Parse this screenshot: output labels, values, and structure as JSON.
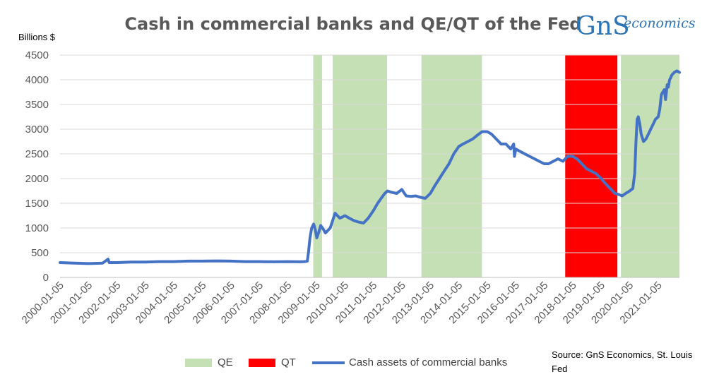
{
  "title": "Cash in commercial banks and QE/QT of the Fed",
  "logo": {
    "main": "GnS",
    "sub": "economics"
  },
  "source": "Source: GnS Economics, St. Louis Fed",
  "colors": {
    "qe": "#c5e0b4",
    "qt": "#ff0000",
    "line": "#4472c4",
    "grid": "#d9d9d9",
    "axis_text": "#595959",
    "logo": "#2e75b6"
  },
  "chart_data": {
    "type": "line",
    "title": "Cash in commercial banks and QE/QT of the Fed",
    "ylabel": "Billions $",
    "xlabel": "",
    "ylim": [
      0,
      4500
    ],
    "yticks": [
      0,
      500,
      1000,
      1500,
      2000,
      2500,
      3000,
      3500,
      4000,
      4500
    ],
    "xlim": [
      "2000-01-05",
      "2021-10-05"
    ],
    "xticks": [
      "2000-01-05",
      "2001-01-05",
      "2002-01-05",
      "2003-01-05",
      "2004-01-05",
      "2005-01-05",
      "2006-01-05",
      "2007-01-05",
      "2008-01-05",
      "2009-01-05",
      "2010-01-05",
      "2011-01-05",
      "2012-01-05",
      "2013-01-05",
      "2014-01-05",
      "2015-01-05",
      "2016-01-05",
      "2017-01-05",
      "2018-01-05",
      "2019-01-05",
      "2020-01-05",
      "2021-01-05"
    ],
    "grid": true,
    "legend_position": "bottom",
    "bands": [
      {
        "label": "QE",
        "start": "2008-11-25",
        "end": "2009-03-18",
        "color": "#c5e0b4"
      },
      {
        "label": "QE",
        "start": "2009-08-01",
        "end": "2011-06-30",
        "color": "#c5e0b4"
      },
      {
        "label": "QE",
        "start": "2012-09-13",
        "end": "2014-10-29",
        "color": "#c5e0b4"
      },
      {
        "label": "QT",
        "start": "2017-10-01",
        "end": "2019-08-01",
        "color": "#ff0000"
      },
      {
        "label": "QE",
        "start": "2019-09-15",
        "end": "2021-10-05",
        "color": "#c5e0b4"
      }
    ],
    "legend": [
      {
        "label": "QE",
        "kind": "band",
        "color": "#c5e0b4"
      },
      {
        "label": "QT",
        "kind": "band",
        "color": "#ff0000"
      },
      {
        "label": "Cash assets of commercial banks",
        "kind": "line",
        "color": "#4472c4"
      }
    ],
    "series": [
      {
        "name": "Cash assets of commercial banks",
        "color": "#4472c4",
        "x": [
          "2000-01-05",
          "2000-07-05",
          "2001-01-05",
          "2001-07-05",
          "2001-09-12",
          "2001-09-26",
          "2002-01-05",
          "2002-07-05",
          "2003-01-05",
          "2003-07-05",
          "2004-01-05",
          "2004-07-05",
          "2005-01-05",
          "2005-07-05",
          "2006-01-05",
          "2006-07-05",
          "2007-01-05",
          "2007-07-05",
          "2008-01-05",
          "2008-06-05",
          "2008-08-05",
          "2008-09-10",
          "2008-09-25",
          "2008-10-15",
          "2008-11-05",
          "2008-12-01",
          "2008-12-20",
          "2009-01-10",
          "2009-02-01",
          "2009-03-01",
          "2009-04-01",
          "2009-05-01",
          "2009-06-01",
          "2009-07-01",
          "2009-08-01",
          "2009-09-01",
          "2009-10-01",
          "2009-11-01",
          "2009-12-01",
          "2010-01-05",
          "2010-03-01",
          "2010-05-01",
          "2010-07-01",
          "2010-09-01",
          "2010-11-01",
          "2011-01-05",
          "2011-03-01",
          "2011-04-15",
          "2011-06-01",
          "2011-07-05",
          "2011-09-01",
          "2011-11-01",
          "2012-01-05",
          "2012-03-01",
          "2012-05-01",
          "2012-07-01",
          "2012-09-01",
          "2012-11-01",
          "2013-01-05",
          "2013-03-01",
          "2013-05-01",
          "2013-07-01",
          "2013-09-01",
          "2013-11-01",
          "2014-01-05",
          "2014-03-01",
          "2014-05-01",
          "2014-07-01",
          "2014-09-01",
          "2014-11-01",
          "2015-01-05",
          "2015-03-01",
          "2015-05-01",
          "2015-07-01",
          "2015-09-01",
          "2015-11-01",
          "2015-12-10",
          "2015-12-20",
          "2016-01-05",
          "2016-03-01",
          "2016-05-01",
          "2016-07-01",
          "2016-09-01",
          "2016-11-01",
          "2017-01-05",
          "2017-03-01",
          "2017-05-01",
          "2017-07-01",
          "2017-09-01",
          "2017-11-01",
          "2018-01-05",
          "2018-03-01",
          "2018-05-01",
          "2018-07-01",
          "2018-09-01",
          "2018-11-01",
          "2019-01-05",
          "2019-03-01",
          "2019-05-01",
          "2019-07-01",
          "2019-08-15",
          "2019-10-01",
          "2019-11-15",
          "2020-01-05",
          "2020-02-15",
          "2020-03-10",
          "2020-03-25",
          "2020-04-10",
          "2020-04-25",
          "2020-05-15",
          "2020-06-01",
          "2020-07-01",
          "2020-08-01",
          "2020-09-01",
          "2020-10-01",
          "2020-11-01",
          "2020-12-01",
          "2021-01-05",
          "2021-01-25",
          "2021-02-15",
          "2021-03-05",
          "2021-03-25",
          "2021-04-10",
          "2021-05-01",
          "2021-05-15",
          "2021-06-01",
          "2021-07-01",
          "2021-08-01",
          "2021-09-01",
          "2021-10-05"
        ],
        "values": [
          300,
          290,
          280,
          290,
          370,
          300,
          300,
          310,
          310,
          320,
          320,
          330,
          330,
          335,
          330,
          320,
          320,
          315,
          320,
          315,
          320,
          330,
          500,
          800,
          1000,
          1080,
          980,
          800,
          900,
          1050,
          980,
          900,
          950,
          1000,
          1150,
          1300,
          1250,
          1200,
          1220,
          1250,
          1200,
          1150,
          1120,
          1100,
          1200,
          1350,
          1500,
          1600,
          1700,
          1750,
          1720,
          1700,
          1780,
          1650,
          1640,
          1650,
          1620,
          1600,
          1700,
          1850,
          2000,
          2150,
          2300,
          2500,
          2650,
          2700,
          2750,
          2800,
          2880,
          2950,
          2950,
          2900,
          2800,
          2700,
          2700,
          2600,
          2700,
          2450,
          2600,
          2550,
          2500,
          2450,
          2400,
          2350,
          2300,
          2300,
          2350,
          2400,
          2350,
          2450,
          2450,
          2400,
          2300,
          2200,
          2150,
          2100,
          2000,
          1900,
          1800,
          1700,
          1680,
          1650,
          1700,
          1750,
          1800,
          2100,
          2700,
          3200,
          3250,
          3100,
          2900,
          2750,
          2800,
          2900,
          3000,
          3100,
          3200,
          3250,
          3400,
          3700,
          3750,
          3800,
          3600,
          3900,
          3850,
          4000,
          4100,
          4150,
          4180,
          4150
        ]
      }
    ]
  }
}
